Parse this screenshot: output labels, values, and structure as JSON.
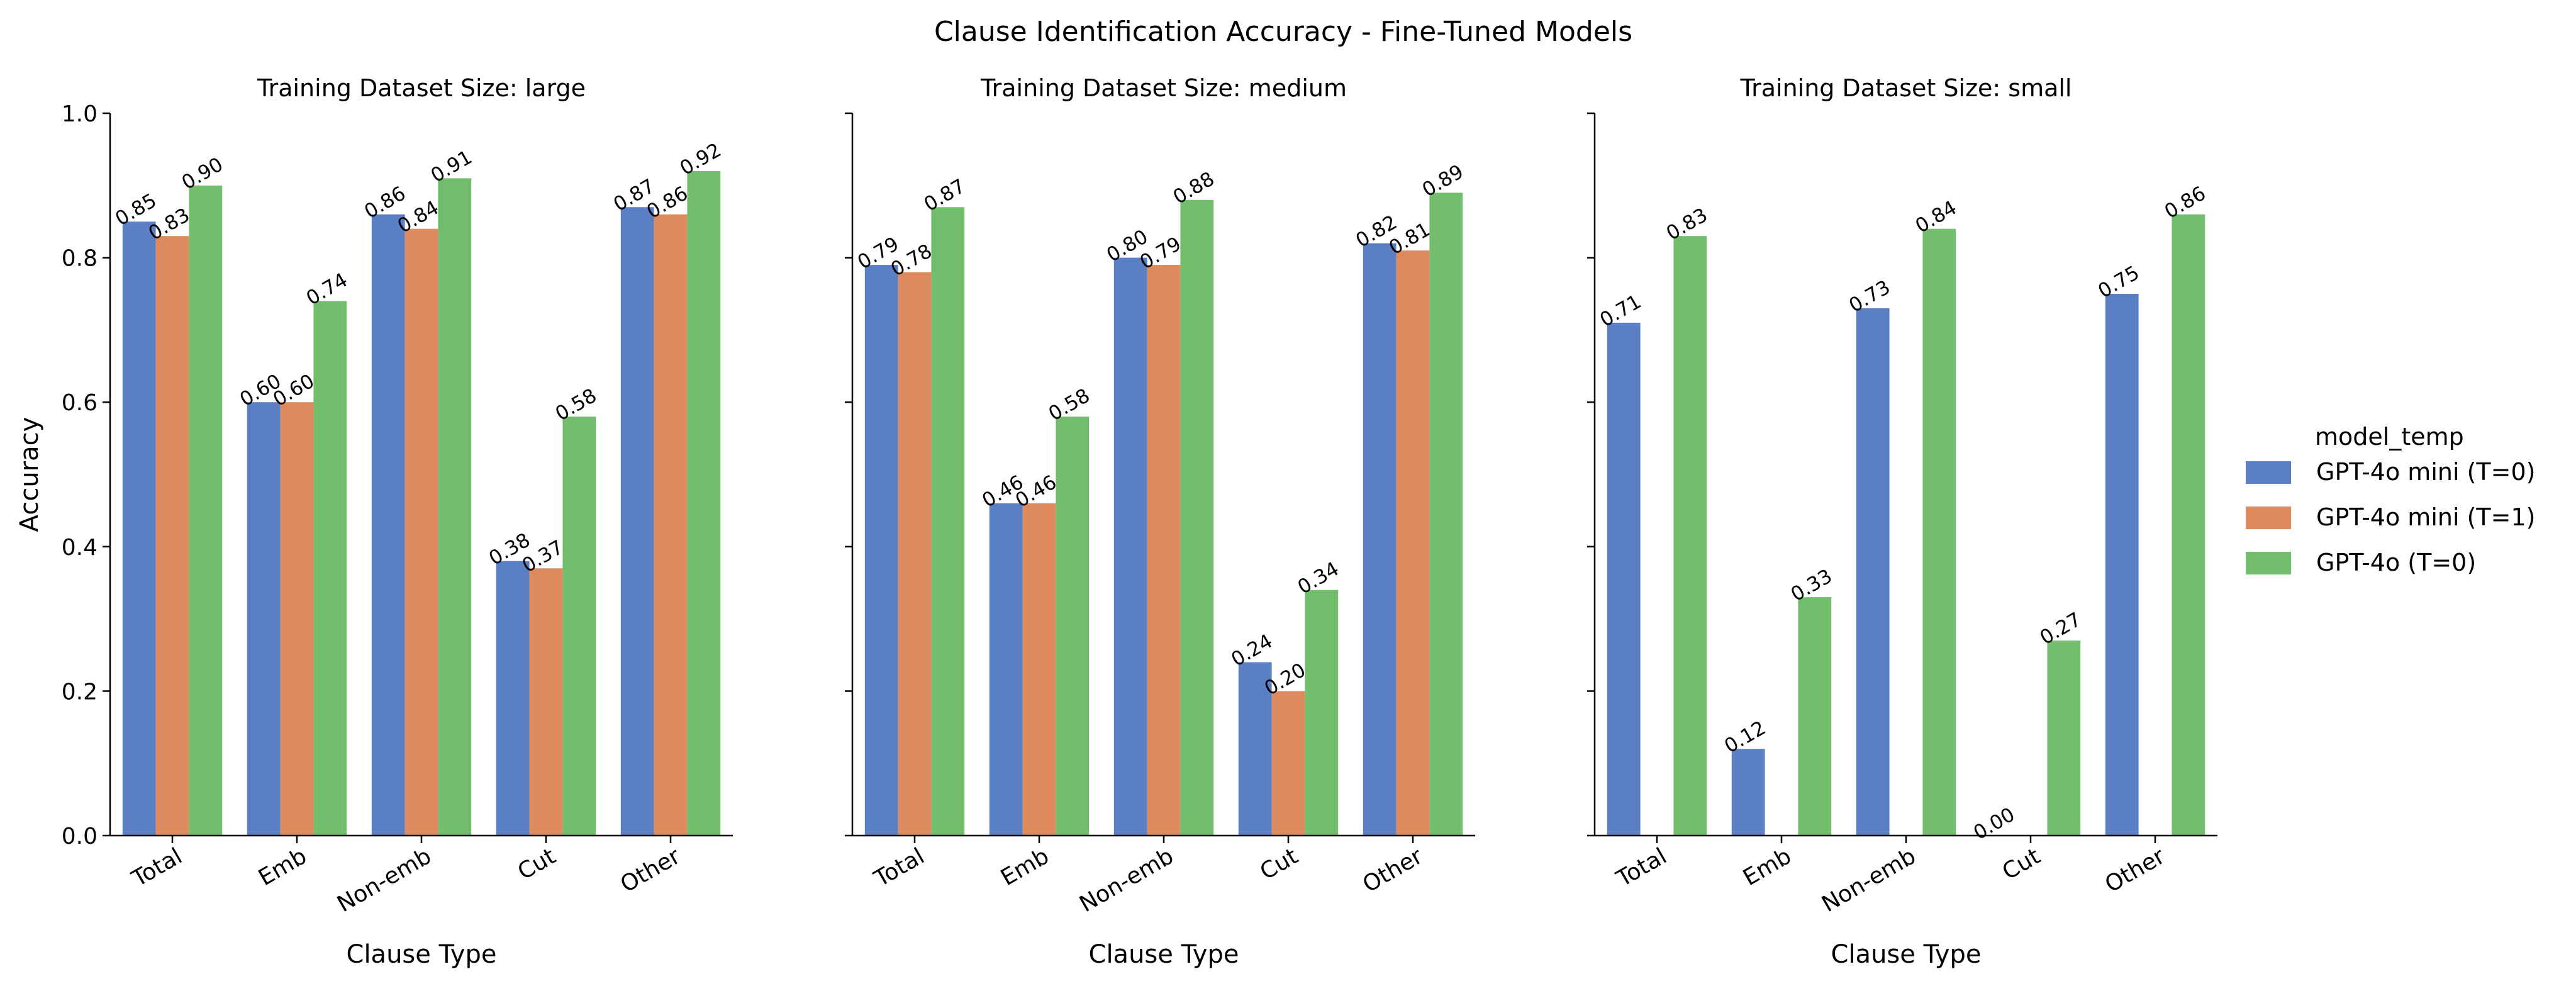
{
  "chart_data": {
    "type": "bar",
    "title": "Clause Identification Accuracy - Fine-Tuned Models",
    "xlabel": "Clause Type",
    "ylabel": "Accuracy",
    "ylim": [
      0,
      1.0
    ],
    "yticks": [
      "0.0",
      "0.2",
      "0.4",
      "0.6",
      "0.8",
      "1.0"
    ],
    "categories": [
      "Total",
      "Emb",
      "Non-emb",
      "Cut",
      "Other"
    ],
    "legend": {
      "title": "model_temp",
      "placement": "right",
      "entries": [
        "GPT-4o mini (T=0)",
        "GPT-4o mini (T=1)",
        "GPT-4o (T=0)"
      ]
    },
    "series_colors": [
      "#5a7fc4",
      "#dd8a5e",
      "#72be6d"
    ],
    "panels": [
      {
        "title": "Training Dataset Size: large",
        "series": [
          {
            "name": "GPT-4o mini (T=0)",
            "values": [
              0.85,
              0.6,
              0.86,
              0.38,
              0.87
            ],
            "labels": [
              "0.85",
              "0.60",
              "0.86",
              "0.38",
              "0.87"
            ]
          },
          {
            "name": "GPT-4o mini (T=1)",
            "values": [
              0.83,
              0.6,
              0.84,
              0.37,
              0.86
            ],
            "labels": [
              "0.83",
              "0.60",
              "0.84",
              "0.37",
              "0.86"
            ]
          },
          {
            "name": "GPT-4o (T=0)",
            "values": [
              0.9,
              0.74,
              0.91,
              0.58,
              0.92
            ],
            "labels": [
              "0.90",
              "0.74",
              "0.91",
              "0.58",
              "0.92"
            ]
          }
        ]
      },
      {
        "title": "Training Dataset Size: medium",
        "series": [
          {
            "name": "GPT-4o mini (T=0)",
            "values": [
              0.79,
              0.46,
              0.8,
              0.24,
              0.82
            ],
            "labels": [
              "0.79",
              "0.46",
              "0.80",
              "0.24",
              "0.82"
            ]
          },
          {
            "name": "GPT-4o mini (T=1)",
            "values": [
              0.78,
              0.46,
              0.79,
              0.2,
              0.81
            ],
            "labels": [
              "0.78",
              "0.46",
              "0.79",
              "0.20",
              "0.81"
            ]
          },
          {
            "name": "GPT-4o (T=0)",
            "values": [
              0.87,
              0.58,
              0.88,
              0.34,
              0.89
            ],
            "labels": [
              "0.87",
              "0.58",
              "0.88",
              "0.34",
              "0.89"
            ]
          }
        ]
      },
      {
        "title": "Training Dataset Size: small",
        "series": [
          {
            "name": "GPT-4o mini (T=0)",
            "values": [
              0.71,
              0.12,
              0.73,
              0.0,
              0.75
            ],
            "labels": [
              "0.71",
              "0.12",
              "0.73",
              "0.00",
              "0.75"
            ]
          },
          {
            "name": "GPT-4o mini (T=1)",
            "values": [
              null,
              null,
              null,
              null,
              null
            ],
            "labels": [
              null,
              null,
              null,
              null,
              null
            ]
          },
          {
            "name": "GPT-4o (T=0)",
            "values": [
              0.83,
              0.33,
              0.84,
              0.27,
              0.86
            ],
            "labels": [
              "0.83",
              "0.33",
              "0.84",
              "0.27",
              "0.86"
            ]
          }
        ]
      }
    ]
  }
}
